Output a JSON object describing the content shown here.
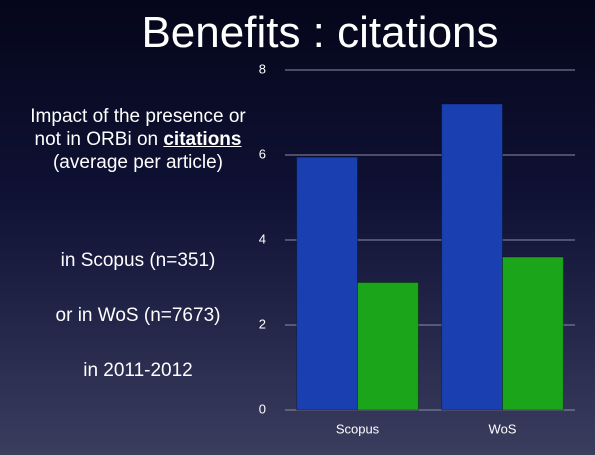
{
  "title": "Benefits : citations",
  "description": {
    "before": "Impact of the presence or not in ORBi on ",
    "emphasis": "citations",
    "after": "(average per article)"
  },
  "notes": [
    "in Scopus (n=351)",
    "or in WoS (n=7673)",
    "in 2011-2012"
  ],
  "chart_data": {
    "type": "bar",
    "categories": [
      "Scopus",
      "WoS"
    ],
    "series": [
      {
        "color": "#1a3fb0",
        "values": [
          5.95,
          7.2
        ]
      },
      {
        "color": "#1aa51a",
        "values": [
          3.0,
          3.6
        ]
      }
    ],
    "ylim": [
      0,
      8
    ],
    "yticks": [
      0,
      2,
      4,
      6,
      8
    ],
    "grid": true
  }
}
